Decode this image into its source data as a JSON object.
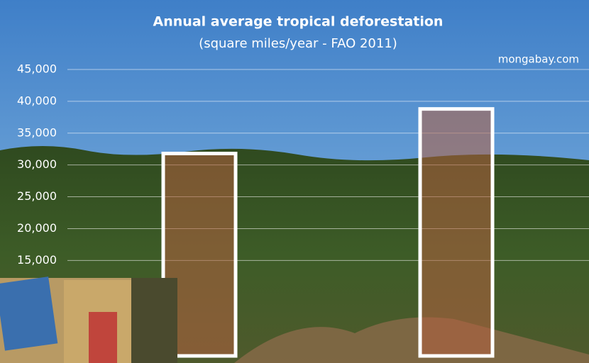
{
  "chart_data": {
    "type": "bar",
    "title": "Annual average tropical deforestation",
    "subtitle": "(square miles/year - FAO 2011)",
    "source": "mongabay.com",
    "categories": [
      null,
      null
    ],
    "values": [
      31800,
      38800
    ],
    "color": "#b5603f",
    "ylim": [
      0,
      45000
    ],
    "yticks": [
      {
        "value": 15000,
        "label": "15,000"
      },
      {
        "value": 20000,
        "label": "20,000"
      },
      {
        "value": 25000,
        "label": "25,000"
      },
      {
        "value": 30000,
        "label": "30,000"
      },
      {
        "value": 35000,
        "label": "35,000"
      },
      {
        "value": 40000,
        "label": "40,000"
      },
      {
        "value": 45000,
        "label": "45,000"
      }
    ],
    "grid": true
  }
}
